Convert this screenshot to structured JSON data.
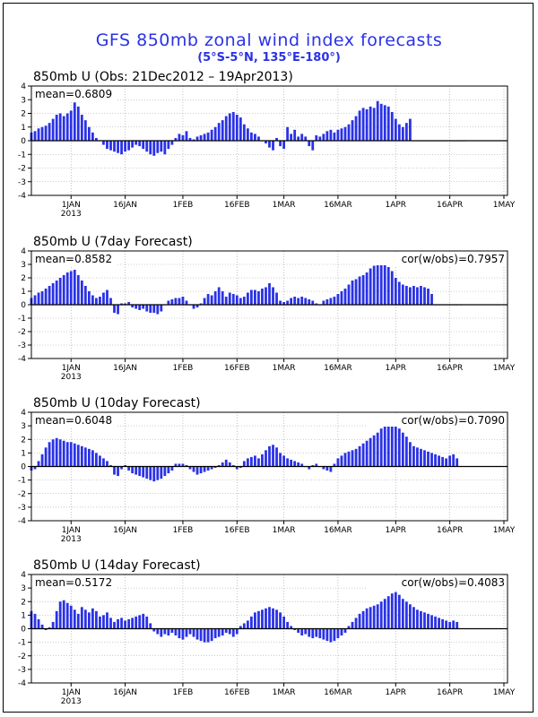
{
  "page": {
    "title": "GFS 850mb zonal wind index forecasts",
    "subtitle": "(5°S-5°N, 135°E-180°)"
  },
  "colors": {
    "bar": "#2a32e6",
    "title": "#2a32e6",
    "axis": "#000000",
    "grid": "#999999"
  },
  "chart_data": [
    {
      "type": "bar",
      "title": "850mb U (Obs: 21Dec2012 – 19Apr2013)",
      "mean_label": "mean=0.6809",
      "cor_label": "",
      "ylim": [
        -4,
        4
      ],
      "xlim": [
        "2012-12-21",
        "2013-05-02"
      ],
      "yticks": [
        4,
        3,
        2,
        1,
        0,
        -1,
        -2,
        -3,
        -4
      ],
      "xticks": [
        {
          "date": "2013-01-01",
          "label": "1JAN",
          "sub": "2013"
        },
        {
          "date": "2013-01-16",
          "label": "16JAN",
          "sub": ""
        },
        {
          "date": "2013-02-01",
          "label": "1FEB",
          "sub": ""
        },
        {
          "date": "2013-02-16",
          "label": "16FEB",
          "sub": ""
        },
        {
          "date": "2013-03-01",
          "label": "1MAR",
          "sub": ""
        },
        {
          "date": "2013-03-16",
          "label": "16MAR",
          "sub": ""
        },
        {
          "date": "2013-04-01",
          "label": "1APR",
          "sub": ""
        },
        {
          "date": "2013-04-16",
          "label": "16APR",
          "sub": ""
        },
        {
          "date": "2013-05-01",
          "label": "1MAY",
          "sub": ""
        }
      ],
      "series": [
        {
          "start": "2012-12-21",
          "values": [
            0.6,
            0.7,
            0.9,
            1.0,
            1.1,
            1.3,
            1.6,
            1.9,
            2.0,
            1.8,
            2.0,
            2.2,
            2.8,
            2.5,
            1.9,
            1.5,
            1.0,
            0.6,
            0.2,
            0.0,
            -0.3,
            -0.6,
            -0.7,
            -0.8,
            -0.9,
            -1.0,
            -0.8,
            -0.7,
            -0.5,
            -0.3,
            -0.4,
            -0.6,
            -0.8,
            -1.0,
            -1.1,
            -0.9,
            -0.8,
            -1.0,
            -0.6,
            -0.3,
            0.2,
            0.5,
            0.4,
            0.7,
            0.2,
            0.1,
            0.3,
            0.4,
            0.5,
            0.6,
            0.8,
            1.0,
            1.3,
            1.5,
            1.8,
            2.0,
            2.1,
            1.9,
            1.7,
            1.2,
            0.9,
            0.6,
            0.5,
            0.3,
            0.0,
            -0.2,
            -0.5,
            -0.7,
            0.2,
            -0.4,
            -0.6,
            1.0,
            0.5,
            0.8,
            0.3,
            0.5,
            0.3,
            -0.4,
            -0.7,
            0.4,
            0.3,
            0.5,
            0.7,
            0.8,
            0.6,
            0.8,
            0.9,
            1.0,
            1.2,
            1.5,
            1.8,
            2.2,
            2.4,
            2.3,
            2.5,
            2.4,
            2.9,
            2.7,
            2.6,
            2.5,
            2.1,
            1.6,
            1.2,
            1.0,
            1.3,
            1.6,
            0.0,
            0.0,
            0.0,
            0.0,
            0.0,
            0.0,
            0.0,
            0.0,
            0.0,
            0.0,
            0.0,
            0.0,
            0.0,
            0.0,
            0.0
          ]
        }
      ]
    },
    {
      "type": "bar",
      "title": "850mb U (7day Forecast)",
      "mean_label": "mean=0.8582",
      "cor_label": "cor(w/obs)=0.7957",
      "ylim": [
        -4,
        4
      ],
      "xlim": [
        "2012-12-21",
        "2013-05-02"
      ],
      "yticks": [
        4,
        3,
        2,
        1,
        0,
        -1,
        -2,
        -3,
        -4
      ],
      "xticks": [
        {
          "date": "2013-01-01",
          "label": "1JAN",
          "sub": "2013"
        },
        {
          "date": "2013-01-16",
          "label": "16JAN",
          "sub": ""
        },
        {
          "date": "2013-02-01",
          "label": "1FEB",
          "sub": ""
        },
        {
          "date": "2013-02-16",
          "label": "16FEB",
          "sub": ""
        },
        {
          "date": "2013-03-01",
          "label": "1MAR",
          "sub": ""
        },
        {
          "date": "2013-03-16",
          "label": "16MAR",
          "sub": ""
        },
        {
          "date": "2013-04-01",
          "label": "1APR",
          "sub": ""
        },
        {
          "date": "2013-04-16",
          "label": "16APR",
          "sub": ""
        },
        {
          "date": "2013-05-01",
          "label": "1MAY",
          "sub": ""
        }
      ],
      "series": [
        {
          "start": "2012-12-21",
          "values": [
            0.5,
            0.7,
            0.9,
            1.0,
            1.2,
            1.4,
            1.6,
            1.8,
            2.0,
            2.2,
            2.4,
            2.5,
            2.6,
            2.2,
            1.8,
            1.4,
            1.0,
            0.7,
            0.5,
            0.6,
            0.9,
            1.1,
            0.5,
            -0.6,
            -0.7,
            0.1,
            0.1,
            0.2,
            -0.2,
            -0.3,
            -0.4,
            -0.3,
            -0.5,
            -0.6,
            -0.6,
            -0.7,
            -0.5,
            0.0,
            0.3,
            0.4,
            0.5,
            0.5,
            0.6,
            0.3,
            0.0,
            -0.3,
            -0.2,
            0.1,
            0.5,
            0.8,
            0.7,
            1.0,
            1.3,
            1.0,
            0.6,
            0.9,
            0.8,
            0.7,
            0.5,
            0.6,
            0.9,
            1.1,
            1.1,
            1.0,
            1.2,
            1.3,
            1.6,
            1.3,
            0.9,
            0.3,
            0.2,
            0.3,
            0.5,
            0.6,
            0.5,
            0.6,
            0.5,
            0.4,
            0.3,
            0.1,
            0.0,
            0.3,
            0.4,
            0.5,
            0.6,
            0.8,
            1.0,
            1.2,
            1.5,
            1.8,
            1.9,
            2.1,
            2.2,
            2.4,
            2.7,
            2.9,
            3.1,
            3.2,
            3.0,
            2.8,
            2.5,
            2.0,
            1.7,
            1.5,
            1.4,
            1.3,
            1.4,
            1.3,
            1.4,
            1.3,
            1.2,
            0.8,
            0.0,
            0.0,
            0.0,
            0.0,
            0.0,
            0.0,
            0.0,
            0.0
          ]
        }
      ]
    },
    {
      "type": "bar",
      "title": "850mb U (10day Forecast)",
      "mean_label": "mean=0.6048",
      "cor_label": "cor(w/obs)=0.7090",
      "ylim": [
        -4,
        4
      ],
      "xlim": [
        "2012-12-21",
        "2013-05-02"
      ],
      "yticks": [
        4,
        3,
        2,
        1,
        0,
        -1,
        -2,
        -3,
        -4
      ],
      "xticks": [
        {
          "date": "2013-01-01",
          "label": "1JAN",
          "sub": "2013"
        },
        {
          "date": "2013-01-16",
          "label": "16JAN",
          "sub": ""
        },
        {
          "date": "2013-02-01",
          "label": "1FEB",
          "sub": ""
        },
        {
          "date": "2013-02-16",
          "label": "16FEB",
          "sub": ""
        },
        {
          "date": "2013-03-01",
          "label": "1MAR",
          "sub": ""
        },
        {
          "date": "2013-03-16",
          "label": "16MAR",
          "sub": ""
        },
        {
          "date": "2013-04-01",
          "label": "1APR",
          "sub": ""
        },
        {
          "date": "2013-04-16",
          "label": "16APR",
          "sub": ""
        },
        {
          "date": "2013-05-01",
          "label": "1MAY",
          "sub": ""
        }
      ],
      "series": [
        {
          "start": "2012-12-21",
          "values": [
            -0.3,
            -0.2,
            0.4,
            0.9,
            1.4,
            1.8,
            2.0,
            2.1,
            2.0,
            1.9,
            1.8,
            1.8,
            1.7,
            1.6,
            1.5,
            1.4,
            1.3,
            1.2,
            1.0,
            0.8,
            0.6,
            0.4,
            0.1,
            -0.6,
            -0.7,
            -0.2,
            0.1,
            -0.3,
            -0.5,
            -0.6,
            -0.7,
            -0.8,
            -0.9,
            -1.0,
            -1.1,
            -1.0,
            -0.9,
            -0.7,
            -0.5,
            -0.3,
            0.2,
            0.2,
            0.2,
            0.1,
            -0.2,
            -0.4,
            -0.6,
            -0.5,
            -0.4,
            -0.3,
            -0.2,
            -0.1,
            0.1,
            0.3,
            0.5,
            0.3,
            0.1,
            -0.2,
            -0.1,
            0.4,
            0.6,
            0.7,
            0.8,
            0.6,
            0.9,
            1.2,
            1.5,
            1.6,
            1.4,
            1.0,
            0.8,
            0.6,
            0.5,
            0.4,
            0.3,
            0.2,
            0.0,
            -0.2,
            0.1,
            0.2,
            0.0,
            -0.2,
            -0.3,
            -0.4,
            0.2,
            0.6,
            0.8,
            1.0,
            1.1,
            1.2,
            1.3,
            1.5,
            1.7,
            1.9,
            2.1,
            2.3,
            2.5,
            2.8,
            3.0,
            3.2,
            3.3,
            3.1,
            2.8,
            2.5,
            2.2,
            1.8,
            1.5,
            1.4,
            1.3,
            1.2,
            1.1,
            1.0,
            0.9,
            0.8,
            0.7,
            0.6,
            0.8,
            0.9,
            0.6
          ]
        }
      ]
    },
    {
      "type": "bar",
      "title": "850mb U (14day Forecast)",
      "mean_label": "mean=0.5172",
      "cor_label": "cor(w/obs)=0.4083",
      "ylim": [
        -4,
        4
      ],
      "xlim": [
        "2012-12-21",
        "2013-05-02"
      ],
      "yticks": [
        4,
        3,
        2,
        1,
        0,
        -1,
        -2,
        -3,
        -4
      ],
      "xticks": [
        {
          "date": "2013-01-01",
          "label": "1JAN",
          "sub": "2013"
        },
        {
          "date": "2013-01-16",
          "label": "16JAN",
          "sub": ""
        },
        {
          "date": "2013-02-01",
          "label": "1FEB",
          "sub": ""
        },
        {
          "date": "2013-02-16",
          "label": "16FEB",
          "sub": ""
        },
        {
          "date": "2013-03-01",
          "label": "1MAR",
          "sub": ""
        },
        {
          "date": "2013-03-16",
          "label": "16MAR",
          "sub": ""
        },
        {
          "date": "2013-04-01",
          "label": "1APR",
          "sub": ""
        },
        {
          "date": "2013-04-16",
          "label": "16APR",
          "sub": ""
        },
        {
          "date": "2013-05-01",
          "label": "1MAY",
          "sub": ""
        }
      ],
      "series": [
        {
          "start": "2012-12-21",
          "values": [
            1.3,
            1.1,
            0.7,
            0.3,
            -0.1,
            0.1,
            0.5,
            1.3,
            2.0,
            2.1,
            1.9,
            1.7,
            1.4,
            1.1,
            1.6,
            1.4,
            1.2,
            1.5,
            1.3,
            0.9,
            1.0,
            1.2,
            0.8,
            0.5,
            0.7,
            0.8,
            0.6,
            0.7,
            0.8,
            0.9,
            1.0,
            1.1,
            0.9,
            0.4,
            -0.2,
            -0.4,
            -0.6,
            -0.4,
            -0.5,
            -0.3,
            -0.5,
            -0.7,
            -0.8,
            -0.6,
            -0.4,
            -0.6,
            -0.8,
            -0.9,
            -1.0,
            -1.0,
            -0.9,
            -0.7,
            -0.6,
            -0.5,
            -0.3,
            -0.4,
            -0.6,
            -0.4,
            0.2,
            0.4,
            0.6,
            0.9,
            1.2,
            1.3,
            1.4,
            1.5,
            1.6,
            1.5,
            1.4,
            1.2,
            0.9,
            0.5,
            0.2,
            -0.1,
            -0.3,
            -0.5,
            -0.4,
            -0.6,
            -0.7,
            -0.6,
            -0.7,
            -0.8,
            -0.9,
            -1.0,
            -0.9,
            -0.7,
            -0.5,
            -0.3,
            0.2,
            0.5,
            0.8,
            1.1,
            1.3,
            1.5,
            1.6,
            1.7,
            1.8,
            2.0,
            2.2,
            2.4,
            2.6,
            2.7,
            2.5,
            2.2,
            2.0,
            1.8,
            1.6,
            1.4,
            1.3,
            1.2,
            1.1,
            1.0,
            0.9,
            0.8,
            0.7,
            0.6,
            0.5,
            0.6,
            0.5
          ]
        }
      ]
    }
  ]
}
